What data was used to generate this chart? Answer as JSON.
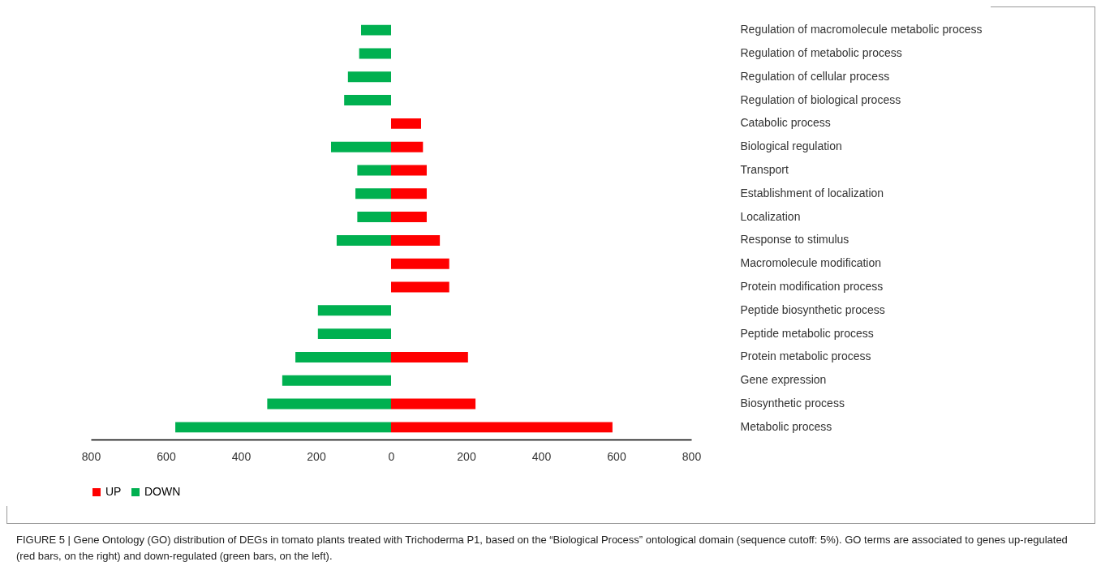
{
  "chart_data": {
    "type": "bar",
    "orientation": "horizontal",
    "categories": [
      "Regulation of macromolecule metabolic process",
      "Regulation of metabolic process",
      "Regulation of cellular process",
      "Regulation of biological process",
      "Catabolic process",
      "Biological regulation",
      "Transport",
      "Establishment of localization",
      "Localization",
      "Response to stimulus",
      "Macromolecule modification",
      "Protein modification process",
      "Peptide biosynthetic process",
      "Peptide metabolic process",
      "Protein metabolic process",
      "Gene expression",
      "Biosynthetic process",
      "Metabolic process"
    ],
    "series": [
      {
        "name": "UP",
        "color": "#ff0000",
        "values": [
          null,
          null,
          null,
          null,
          80,
          85,
          95,
          95,
          95,
          130,
          155,
          155,
          null,
          null,
          205,
          null,
          225,
          590
        ]
      },
      {
        "name": "DOWN",
        "color": "#00b050",
        "values": [
          -80,
          -85,
          -115,
          -125,
          null,
          -160,
          -90,
          -95,
          -90,
          -145,
          null,
          null,
          -195,
          -195,
          -255,
          -290,
          -330,
          -575
        ]
      }
    ],
    "xlim": [
      -800,
      800
    ],
    "xticks": [
      {
        "value": -800,
        "label": "800"
      },
      {
        "value": -600,
        "label": "600"
      },
      {
        "value": -400,
        "label": "400"
      },
      {
        "value": -200,
        "label": "200"
      },
      0,
      200,
      400,
      600,
      800
    ],
    "grid": false,
    "legend": "bottom",
    "annotations": [
      "FIGURE 5 | Gene Ontology (GO) distribution of DEGs in tomato plants treated with Trichoderma P1, based on the “Biological Process” ontological domain (sequence cutoff: 5%). GO terms are associated to genes up-regulated (red bars, on the right) and down-regulated (green bars, on the left)."
    ]
  }
}
